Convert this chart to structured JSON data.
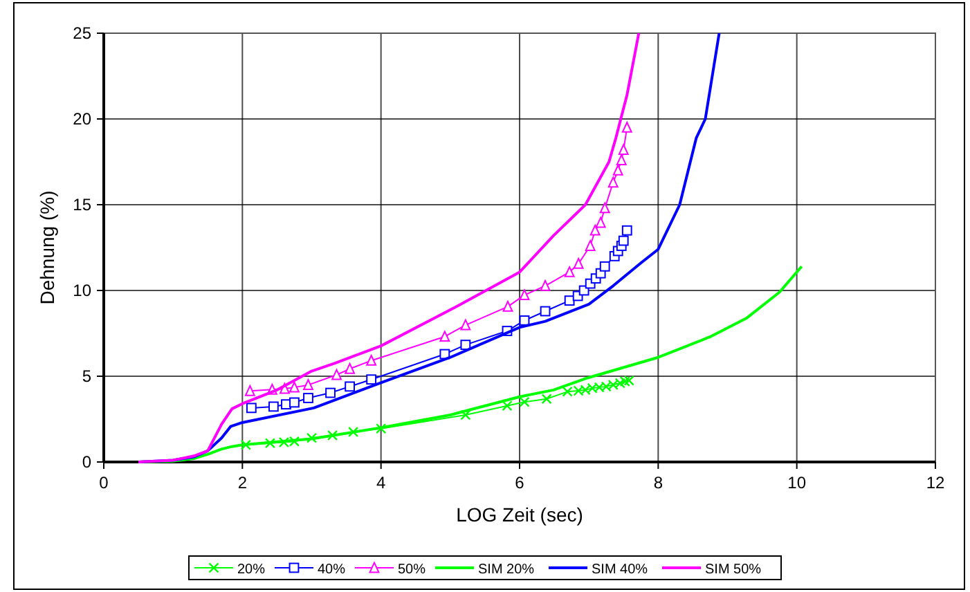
{
  "chart_data": {
    "type": "line",
    "xlabel": "LOG Zeit (sec)",
    "ylabel": "Dehnung (%)",
    "xlim": [
      0,
      12
    ],
    "ylim": [
      0,
      25
    ],
    "xticks": [
      0,
      2,
      4,
      6,
      8,
      10,
      12
    ],
    "yticks": [
      0,
      5,
      10,
      15,
      20,
      25
    ],
    "grid": true,
    "legend": "bottom",
    "series": [
      {
        "name": "20%",
        "color": "#00ff00",
        "marker": "cross",
        "x": [
          2.05,
          2.4,
          2.6,
          2.75,
          3.0,
          3.3,
          3.6,
          4.0,
          5.22,
          5.82,
          6.07,
          6.39,
          6.69,
          6.85,
          6.95,
          7.05,
          7.15,
          7.25,
          7.35,
          7.45,
          7.52,
          7.58
        ],
        "values": [
          1.0,
          1.1,
          1.15,
          1.2,
          1.4,
          1.55,
          1.75,
          1.95,
          2.74,
          3.28,
          3.5,
          3.68,
          4.1,
          4.15,
          4.2,
          4.3,
          4.35,
          4.4,
          4.5,
          4.6,
          4.7,
          4.75
        ]
      },
      {
        "name": "40%",
        "color": "#0000ff",
        "marker": "square",
        "x": [
          2.13,
          2.45,
          2.63,
          2.75,
          2.95,
          3.27,
          3.55,
          3.86,
          4.92,
          5.22,
          5.82,
          6.07,
          6.37,
          6.72,
          6.84,
          6.93,
          7.02,
          7.1,
          7.17,
          7.23,
          7.37,
          7.42,
          7.47,
          7.5,
          7.55
        ],
        "values": [
          3.15,
          3.23,
          3.36,
          3.47,
          3.73,
          4.03,
          4.4,
          4.81,
          6.29,
          6.83,
          7.64,
          8.25,
          8.79,
          9.41,
          9.68,
          10.0,
          10.4,
          10.7,
          11.0,
          11.4,
          12.0,
          12.3,
          12.6,
          12.9,
          13.5
        ]
      },
      {
        "name": "50%",
        "color": "#ff00ff",
        "marker": "triangle",
        "x": [
          2.11,
          2.43,
          2.61,
          2.75,
          2.95,
          3.36,
          3.55,
          3.86,
          4.92,
          5.22,
          5.83,
          6.07,
          6.37,
          6.72,
          6.85,
          7.02,
          7.09,
          7.17,
          7.23,
          7.35,
          7.42,
          7.47,
          7.5,
          7.55
        ],
        "values": [
          4.14,
          4.22,
          4.27,
          4.35,
          4.49,
          5.08,
          5.43,
          5.91,
          7.31,
          7.98,
          9.06,
          9.73,
          10.27,
          11.07,
          11.56,
          12.6,
          13.5,
          13.95,
          14.8,
          16.3,
          17.0,
          17.6,
          18.2,
          19.5
        ]
      },
      {
        "name": "SIM 20%",
        "color": "#00ff00",
        "marker": "none",
        "x": [
          0.5,
          1.0,
          1.3,
          1.5,
          1.7,
          1.85,
          2.0,
          3.0,
          4.0,
          5.0,
          6.0,
          6.49,
          6.98,
          8.0,
          8.75,
          9.28,
          9.75,
          10.07
        ],
        "values": [
          0,
          0.05,
          0.2,
          0.45,
          0.75,
          0.9,
          1.0,
          1.35,
          2.0,
          2.74,
          3.8,
          4.2,
          4.9,
          6.1,
          7.3,
          8.4,
          9.9,
          11.4
        ]
      },
      {
        "name": "SIM 40%",
        "color": "#0000ff",
        "marker": "none",
        "x": [
          0.5,
          1.0,
          1.3,
          1.5,
          1.7,
          1.83,
          2.0,
          3.03,
          4.0,
          5.0,
          6.0,
          6.37,
          7.0,
          7.35,
          7.75,
          8.0,
          8.31,
          8.55,
          8.68,
          8.88
        ],
        "values": [
          0,
          0.1,
          0.3,
          0.65,
          1.4,
          2.07,
          2.3,
          3.15,
          4.62,
          6.1,
          7.85,
          8.2,
          9.2,
          10.27,
          11.6,
          12.4,
          15.0,
          18.9,
          20.0,
          25.0
        ]
      },
      {
        "name": "SIM 50%",
        "color": "#ff00ff",
        "marker": "none",
        "x": [
          0.5,
          1.0,
          1.3,
          1.5,
          1.7,
          1.85,
          2.0,
          2.5,
          3.0,
          3.33,
          4.0,
          5.09,
          6.0,
          6.49,
          6.95,
          7.29,
          7.39,
          7.55,
          7.72
        ],
        "values": [
          0,
          0.1,
          0.35,
          0.65,
          2.2,
          3.1,
          3.4,
          4.2,
          5.3,
          5.75,
          6.77,
          9.06,
          11.07,
          13.2,
          15.0,
          17.5,
          18.9,
          21.4,
          25.0
        ]
      }
    ]
  }
}
